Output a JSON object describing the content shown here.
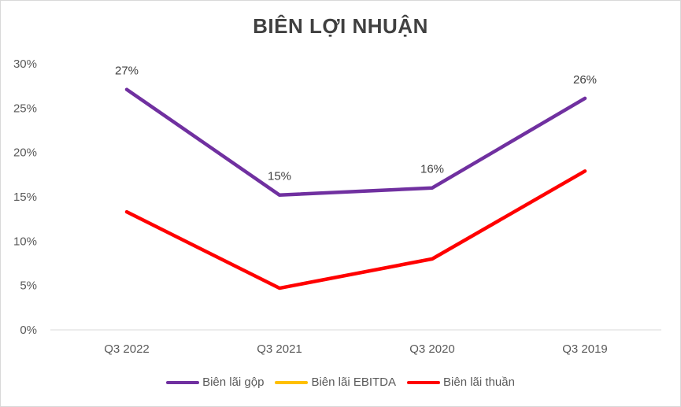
{
  "chart_data": {
    "type": "line",
    "title": "BIÊN LỢI NHUẬN",
    "categories": [
      "Q3 2022",
      "Q3 2021",
      "Q3 2020",
      "Q3 2019"
    ],
    "ylim": [
      0,
      30
    ],
    "yticks": [
      "0%",
      "5%",
      "10%",
      "15%",
      "20%",
      "25%",
      "30%"
    ],
    "grid": false,
    "legend_position": "bottom",
    "series": [
      {
        "name": "Biên lãi gộp",
        "color": "#7030a0",
        "values": [
          27.1,
          15.2,
          16.0,
          26.1
        ],
        "labels": [
          "27%",
          "15%",
          "16%",
          "26%"
        ]
      },
      {
        "name": "Biên lãi EBITDA",
        "color": "#ffc000",
        "values": [
          null,
          null,
          null,
          null
        ],
        "labels": []
      },
      {
        "name": "Biên lãi thuần",
        "color": "#ff0000",
        "values": [
          13.3,
          4.7,
          8.0,
          17.9
        ],
        "labels": []
      }
    ]
  }
}
